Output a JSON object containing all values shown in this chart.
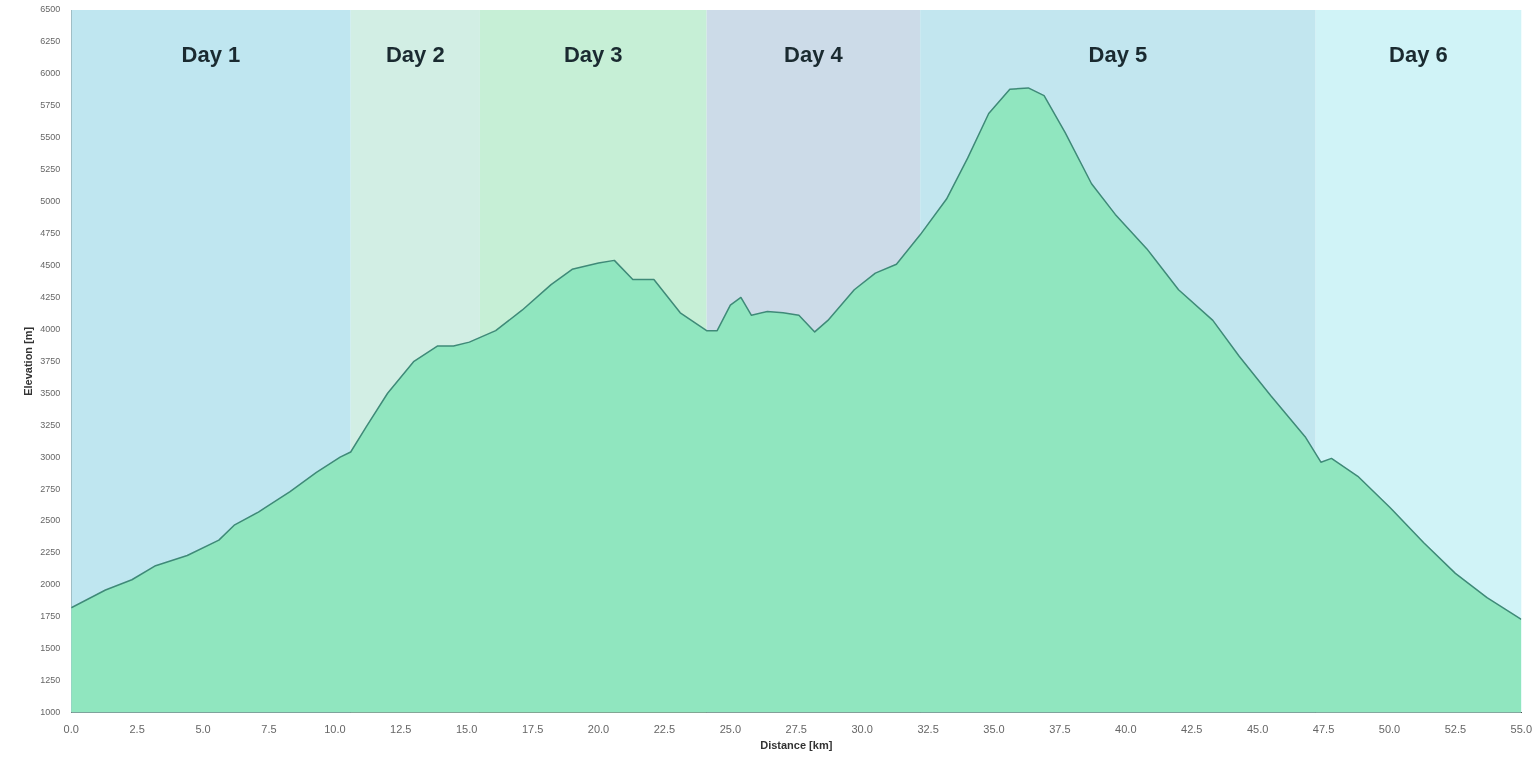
{
  "chart_data": {
    "type": "area",
    "xlabel": "Distance [km]",
    "ylabel": "Elevation [m]",
    "xlim": [
      0,
      55
    ],
    "ylim": [
      1000,
      6500
    ],
    "xticks": [
      {
        "value": 0,
        "label": "0.0"
      },
      {
        "value": 2.5,
        "label": "2.5"
      },
      {
        "value": 5,
        "label": "5.0"
      },
      {
        "value": 7.5,
        "label": "7.5"
      },
      {
        "value": 10,
        "label": "10.0"
      },
      {
        "value": 12.5,
        "label": "12.5"
      },
      {
        "value": 15,
        "label": "15.0"
      },
      {
        "value": 17.5,
        "label": "17.5"
      },
      {
        "value": 20,
        "label": "20.0"
      },
      {
        "value": 22.5,
        "label": "22.5"
      },
      {
        "value": 25,
        "label": "25.0"
      },
      {
        "value": 27.5,
        "label": "27.5"
      },
      {
        "value": 30,
        "label": "30.0"
      },
      {
        "value": 32.5,
        "label": "32.5"
      },
      {
        "value": 35,
        "label": "35.0"
      },
      {
        "value": 37.5,
        "label": "37.5"
      },
      {
        "value": 40,
        "label": "40.0"
      },
      {
        "value": 42.5,
        "label": "42.5"
      },
      {
        "value": 45,
        "label": "45.0"
      },
      {
        "value": 47.5,
        "label": "47.5"
      },
      {
        "value": 50,
        "label": "50.0"
      },
      {
        "value": 52.5,
        "label": "52.5"
      },
      {
        "value": 55,
        "label": "55.0"
      }
    ],
    "yticks": [
      1000,
      1250,
      1500,
      1750,
      2000,
      2250,
      2500,
      2750,
      3000,
      3250,
      3500,
      3750,
      4000,
      4250,
      4500,
      4750,
      5000,
      5250,
      5500,
      5750,
      6000,
      6250,
      6500
    ],
    "grid": false,
    "legend": false,
    "bands": [
      {
        "axis": "x",
        "from": 0,
        "to": 10.6,
        "label": "Day 1",
        "color": "#bfe6f0"
      },
      {
        "axis": "x",
        "from": 10.6,
        "to": 15.5,
        "label": "Day 2",
        "color": "#d2eee4"
      },
      {
        "axis": "x",
        "from": 15.5,
        "to": 24.1,
        "label": "Day 3",
        "color": "#c6efd6"
      },
      {
        "axis": "x",
        "from": 24.1,
        "to": 32.2,
        "label": "Day 4",
        "color": "#ccdbe8"
      },
      {
        "axis": "x",
        "from": 32.2,
        "to": 47.2,
        "label": "Day 5",
        "color": "#c2e6ef"
      },
      {
        "axis": "x",
        "from": 47.2,
        "to": 55,
        "label": "Day 6",
        "color": "#d0f3f7"
      }
    ],
    "series": [
      {
        "color": "#3f8a78",
        "x": [
          0,
          1.3,
          2.3,
          3.2,
          4.4,
          5.6,
          6.2,
          7.1,
          8.3,
          9.3,
          10.2,
          10.6,
          11.2,
          12.0,
          13.0,
          13.9,
          14.5,
          15.1,
          16.1,
          17.1,
          18.2,
          19.0,
          20.0,
          20.6,
          21.3,
          22.1,
          23.1,
          24.1,
          24.5,
          25.0,
          25.4,
          25.8,
          26.4,
          27.0,
          27.6,
          28.2,
          28.7,
          29.7,
          30.5,
          31.3,
          32.2,
          33.2,
          34.0,
          34.8,
          35.6,
          36.3,
          36.9,
          37.7,
          38.7,
          39.6,
          40.8,
          42.0,
          43.3,
          44.3,
          45.5,
          46.8,
          47.4,
          47.8,
          48.8,
          50.0,
          51.3,
          52.5,
          53.7,
          55
        ],
        "values": [
          1820,
          1960,
          2040,
          2150,
          2230,
          2350,
          2470,
          2570,
          2730,
          2880,
          3000,
          3040,
          3240,
          3500,
          3750,
          3870,
          3870,
          3900,
          3990,
          4150,
          4350,
          4470,
          4520,
          4540,
          4390,
          4390,
          4130,
          3990,
          3990,
          4190,
          4250,
          4110,
          4140,
          4130,
          4110,
          3980,
          4070,
          4310,
          4440,
          4510,
          4740,
          5020,
          5340,
          5690,
          5880,
          5890,
          5830,
          5540,
          5140,
          4900,
          4630,
          4310,
          4070,
          3790,
          3480,
          3160,
          2960,
          2990,
          2850,
          2610,
          2330,
          2090,
          1900,
          1730
        ]
      }
    ]
  }
}
